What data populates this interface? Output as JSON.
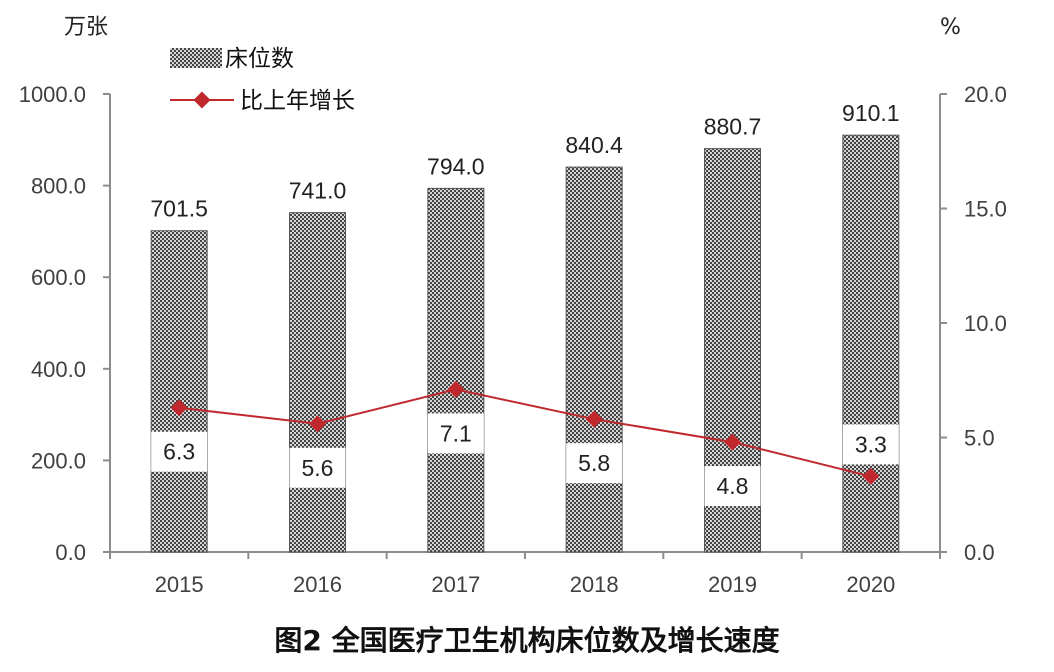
{
  "chart_data": {
    "type": "bar",
    "title": "图2 全国医疗卫生机构床位数及增长速度",
    "categories": [
      "2015",
      "2016",
      "2017",
      "2018",
      "2019",
      "2020"
    ],
    "series": [
      {
        "name": "床位数",
        "type": "bar",
        "axis": "left",
        "values": [
          701.5,
          741.0,
          794.0,
          840.4,
          880.7,
          910.1
        ],
        "labels": [
          "701.5",
          "741.0",
          "794.0",
          "840.4",
          "880.7",
          "910.1"
        ]
      },
      {
        "name": "比上年增长",
        "type": "line",
        "axis": "right",
        "values": [
          6.3,
          5.6,
          7.1,
          5.8,
          4.8,
          3.3
        ],
        "labels": [
          "6.3",
          "5.6",
          "7.1",
          "5.8",
          "4.8",
          "3.3"
        ]
      }
    ],
    "ylabel": "万张",
    "y2label": "%",
    "ylim": [
      0,
      1000
    ],
    "y2lim": [
      0,
      20
    ],
    "yticks": [
      "0.0",
      "200.0",
      "400.0",
      "600.0",
      "800.0",
      "1000.0"
    ],
    "y2ticks": [
      "0.0",
      "5.0",
      "10.0",
      "15.0",
      "20.0"
    ],
    "legend_position": "top-left",
    "grid": false,
    "colors": {
      "bar_fill": "#9a9a9a",
      "bar_pattern": "#444444",
      "line": "#c0282d",
      "axis": "#8c8c8c"
    }
  }
}
